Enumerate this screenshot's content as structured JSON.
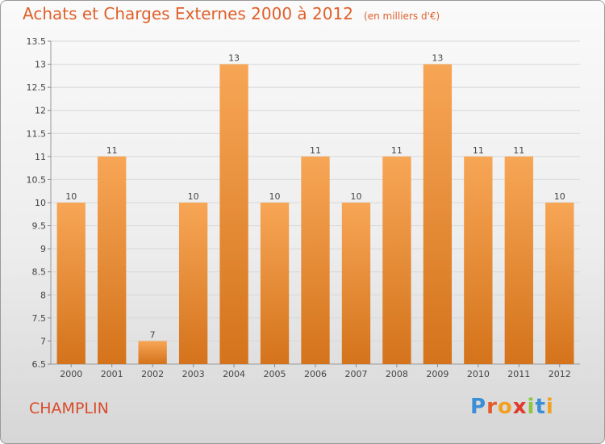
{
  "header": {
    "title": "Achats et Charges Externes 2000 à 2012",
    "subtitle": "(en milliers d'€)"
  },
  "footer": {
    "town": "CHAMPLIN",
    "logo": [
      "P",
      "r",
      "o",
      "x",
      "i",
      "t",
      "i"
    ]
  },
  "colors": {
    "title": "#e0602a",
    "bar_light": "#f7a656",
    "bar_dark": "#d4731b",
    "grid": "#d8d8d8"
  },
  "chart_data": {
    "type": "bar",
    "title": "Achats et Charges Externes 2000 à 2012",
    "subtitle": "(en milliers d'€)",
    "categories": [
      "2000",
      "2001",
      "2002",
      "2003",
      "2004",
      "2005",
      "2006",
      "2007",
      "2008",
      "2009",
      "2010",
      "2011",
      "2012"
    ],
    "values": [
      10,
      11,
      7,
      10,
      13,
      10,
      11,
      10,
      11,
      13,
      11,
      11,
      10
    ],
    "data_labels": [
      "10",
      "11",
      "7",
      "10",
      "13",
      "10",
      "11",
      "10",
      "11",
      "13",
      "11",
      "11",
      "10"
    ],
    "ylim": [
      6.5,
      13.5
    ],
    "yticks": [
      "6.5",
      "7",
      "7.5",
      "8",
      "8.5",
      "9",
      "9.5",
      "10",
      "10.5",
      "11",
      "11.5",
      "12",
      "12.5",
      "13",
      "13.5"
    ],
    "grid": true,
    "legend": "none",
    "xlabel": "",
    "ylabel": ""
  }
}
